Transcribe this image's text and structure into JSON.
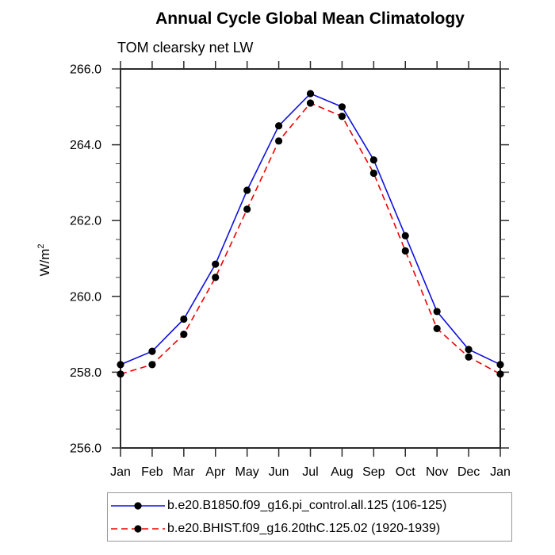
{
  "chart": {
    "title": "Annual Cycle Global Mean Climatology",
    "subtitle": "TOM clearsky net LW",
    "y_axis_title_base": "W/m",
    "y_axis_title_sup": "2"
  },
  "chart_data": {
    "type": "line",
    "title": "Annual Cycle Global Mean Climatology",
    "subtitle": "TOM clearsky net LW",
    "xlabel": "",
    "ylabel": "W/m^2",
    "categories": [
      "Jan",
      "Feb",
      "Mar",
      "Apr",
      "May",
      "Jun",
      "Jul",
      "Aug",
      "Sep",
      "Oct",
      "Nov",
      "Dec",
      "Jan"
    ],
    "series": [
      {
        "name": "b.e20.B1850.f09_g16.pi_control.all.125 (106-125)",
        "color": "#0f0fe0",
        "line_style": "solid",
        "marker": "black-dot",
        "values": [
          258.2,
          258.55,
          259.4,
          260.85,
          262.8,
          264.5,
          265.35,
          265.0,
          263.6,
          261.6,
          259.6,
          258.6,
          258.2
        ]
      },
      {
        "name": "b.e20.BHIST.f09_g16.20thC.125.02 (1920-1939)",
        "color": "#ee0000",
        "line_style": "dashed",
        "marker": "black-dot",
        "values": [
          257.95,
          258.2,
          259.0,
          260.5,
          262.3,
          264.1,
          265.1,
          264.75,
          263.25,
          261.2,
          259.15,
          258.4,
          257.95
        ]
      }
    ],
    "ylim": [
      256.0,
      266.0
    ],
    "y_major_ticks": [
      256,
      258,
      260,
      262,
      264,
      266
    ],
    "y_tick_labels": [
      "256.0",
      "258.0",
      "260.0",
      "262.0",
      "264.0",
      "266.0"
    ],
    "y_minor_step": 0.5,
    "grid": false,
    "legend_position": "bottom",
    "marker_color": "#000000",
    "axis_color": "#2b2b2b"
  }
}
